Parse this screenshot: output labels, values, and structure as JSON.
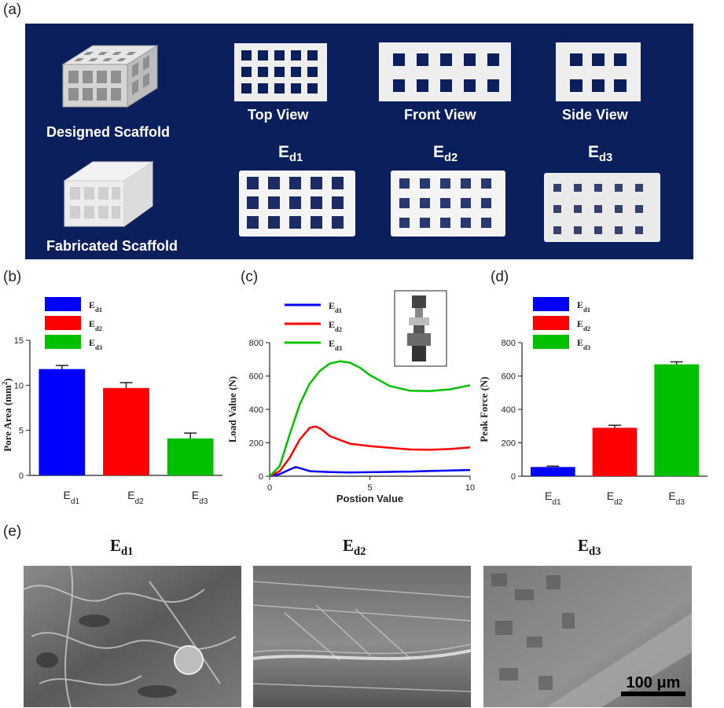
{
  "figure": {
    "labels": {
      "a": "(a)",
      "b": "(b)",
      "c": "(c)",
      "d": "(d)",
      "e": "(e)"
    },
    "series_names": [
      "Ed1",
      "Ed2",
      "Ed3"
    ],
    "colors": {
      "Ed1": "#0000ff",
      "Ed2": "#ff0000",
      "Ed3": "#00c000",
      "panel_bg": "#0b1f5c"
    }
  },
  "panel_a": {
    "designed_label": "Designed Scaffold",
    "fabricated_label": "Fabricated Scaffold",
    "views": [
      "Top View",
      "Front View",
      "Side View"
    ],
    "fabricated_labels": [
      "Ed1",
      "Ed2",
      "Ed3"
    ]
  },
  "panel_e": {
    "titles": [
      "Ed1",
      "Ed2",
      "Ed3"
    ],
    "scale_bar": "100 μm"
  },
  "chart_data": [
    {
      "id": "b",
      "type": "bar",
      "categories": [
        "Ed1",
        "Ed2",
        "Ed3"
      ],
      "values": [
        11.8,
        9.7,
        4.1
      ],
      "errors": [
        0.4,
        0.6,
        0.6
      ],
      "ylabel": "Pore Area (mm²)",
      "ylim": [
        0,
        15
      ],
      "yticks": [
        0,
        5,
        10,
        15
      ],
      "legend": [
        "Ed1",
        "Ed2",
        "Ed3"
      ]
    },
    {
      "id": "c",
      "type": "line",
      "xlabel": "Postion Value",
      "ylabel": "Load Value (N)",
      "xlim": [
        0,
        10
      ],
      "ylim": [
        0,
        800
      ],
      "xticks": [
        0,
        5,
        10
      ],
      "yticks": [
        0,
        200,
        400,
        600,
        800
      ],
      "series": [
        {
          "name": "Ed1",
          "x": [
            0,
            0.5,
            1,
            1.3,
            1.6,
            2,
            3,
            4,
            5,
            6,
            7,
            8,
            9,
            10
          ],
          "y": [
            0,
            12,
            40,
            55,
            45,
            30,
            25,
            22,
            24,
            26,
            28,
            31,
            34,
            37
          ]
        },
        {
          "name": "Ed2",
          "x": [
            0,
            0.5,
            1,
            1.5,
            2,
            2.3,
            2.6,
            3,
            4,
            5,
            6,
            7,
            8,
            9,
            10
          ],
          "y": [
            0,
            30,
            110,
            220,
            290,
            298,
            280,
            240,
            195,
            180,
            170,
            160,
            158,
            163,
            172
          ]
        },
        {
          "name": "Ed3",
          "x": [
            0,
            0.5,
            1,
            1.5,
            2,
            2.5,
            3,
            3.5,
            4,
            4.5,
            5,
            6,
            7,
            8,
            9,
            10
          ],
          "y": [
            0,
            60,
            250,
            430,
            555,
            630,
            675,
            688,
            680,
            650,
            605,
            540,
            512,
            510,
            520,
            545
          ]
        }
      ],
      "legend": [
        "Ed1",
        "Ed2",
        "Ed3"
      ]
    },
    {
      "id": "d",
      "type": "bar",
      "categories": [
        "Ed1",
        "Ed2",
        "Ed3"
      ],
      "values": [
        55,
        290,
        670
      ],
      "errors": [
        5,
        15,
        15
      ],
      "ylabel": "Peak Force (N)",
      "ylim": [
        0,
        800
      ],
      "yticks": [
        0,
        200,
        400,
        600,
        800
      ],
      "legend": [
        "Ed1",
        "Ed2",
        "Ed3"
      ]
    }
  ]
}
